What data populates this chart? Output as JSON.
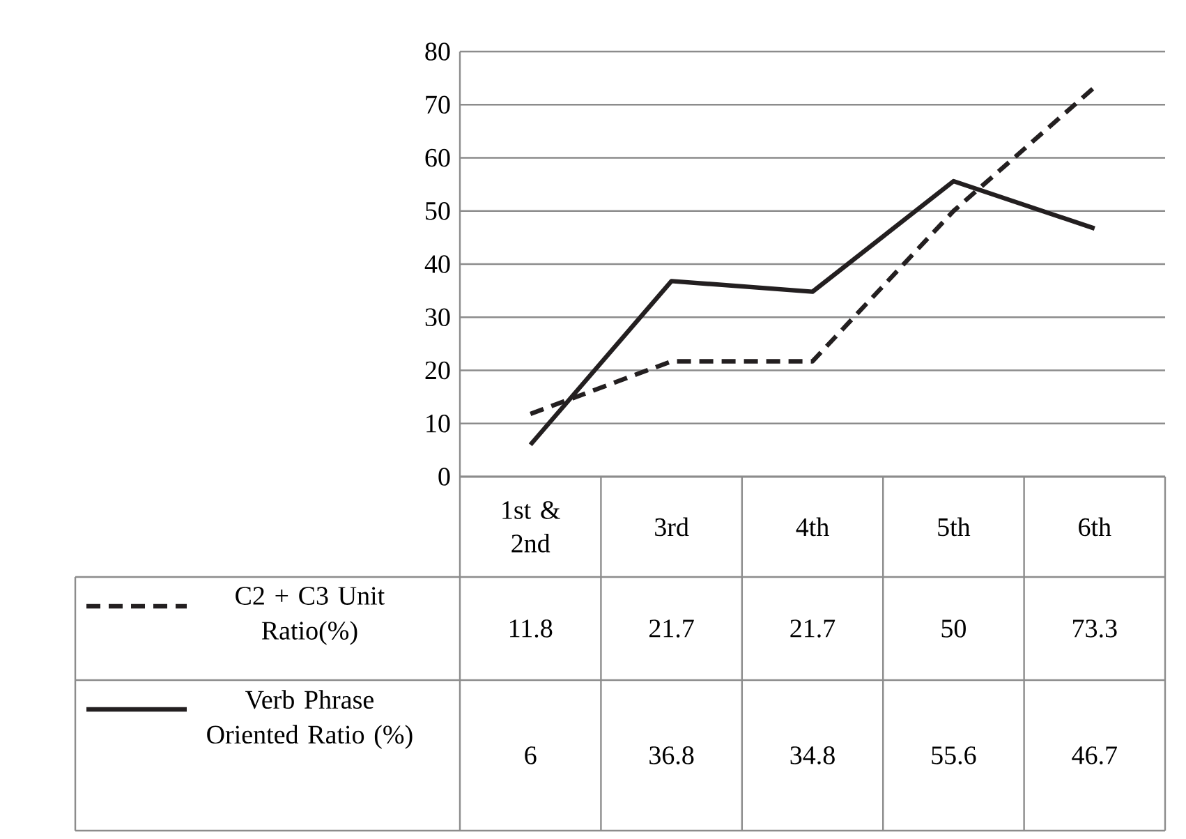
{
  "chart_data": {
    "type": "line",
    "categories": [
      "1st & 2nd",
      "3rd",
      "4th",
      "5th",
      "6th"
    ],
    "series": [
      {
        "name": "C2 + C3 Unit Ratio(%)",
        "color": "#231f20",
        "line_style": "dashed",
        "values": [
          11.8,
          21.7,
          21.7,
          50,
          73.3
        ]
      },
      {
        "name": "Verb Phrase Oriented Ratio (%)",
        "color": "#231f20",
        "line_style": "solid",
        "values": [
          6,
          36.8,
          34.8,
          55.6,
          46.7
        ]
      }
    ],
    "ylim": [
      0,
      80
    ],
    "yticks": [
      0,
      10,
      20,
      30,
      40,
      50,
      60,
      70,
      80
    ],
    "grid": "y",
    "legend": "bottom",
    "data_labels": true
  }
}
